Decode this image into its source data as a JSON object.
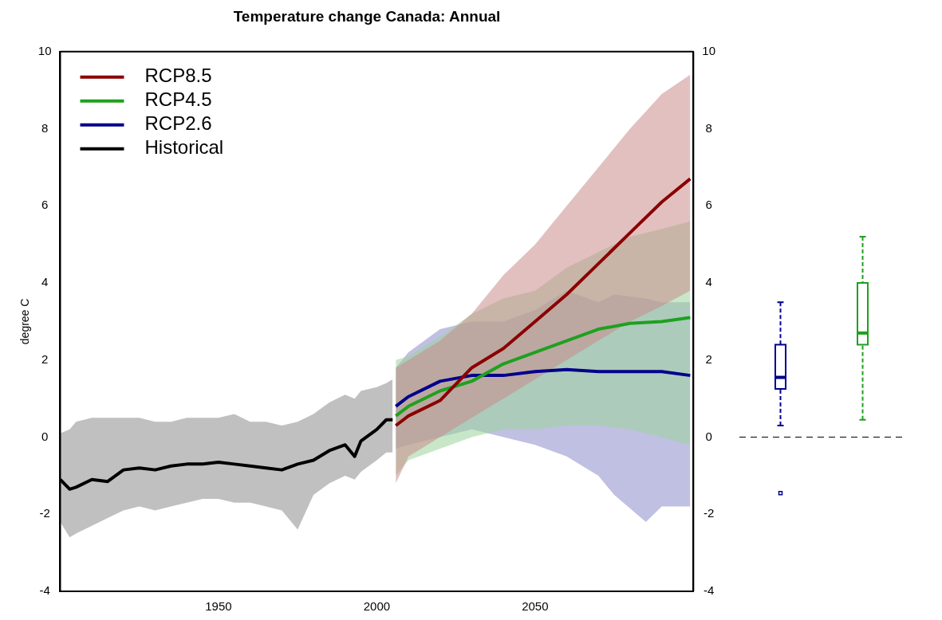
{
  "chart_data": [
    {
      "type": "line",
      "title": "Temperature change Canada: Annual",
      "ylabel": "degree C",
      "xlim": [
        1900,
        2100
      ],
      "xticks": [
        1950,
        2000,
        2050
      ],
      "ylim": [
        -4,
        10
      ],
      "yticks": [
        -4,
        -2,
        0,
        2,
        4,
        6,
        8,
        10
      ],
      "y2lim": [
        -4,
        10
      ],
      "y2ticks": [
        -4,
        -2,
        0,
        2,
        4,
        6,
        8,
        10
      ],
      "grid": false,
      "legend": "top left",
      "series": [
        {
          "name": "RCP8.5",
          "color": "#8b0000",
          "x": [
            2006,
            2010,
            2020,
            2030,
            2040,
            2050,
            2060,
            2070,
            2080,
            2090,
            2099
          ],
          "values": [
            0.3,
            0.55,
            0.95,
            1.8,
            2.3,
            3.0,
            3.7,
            4.5,
            5.3,
            6.1,
            6.7
          ],
          "lower": [
            -1.2,
            -0.5,
            0.0,
            0.5,
            1.0,
            1.5,
            2.0,
            2.5,
            3.0,
            3.4,
            3.8
          ],
          "upper": [
            1.8,
            2.0,
            2.5,
            3.2,
            4.2,
            5.0,
            6.0,
            7.0,
            8.0,
            8.9,
            9.4
          ]
        },
        {
          "name": "RCP4.5",
          "color": "#1fa01f",
          "x": [
            2006,
            2010,
            2020,
            2030,
            2040,
            2050,
            2060,
            2070,
            2080,
            2090,
            2099
          ],
          "values": [
            0.55,
            0.8,
            1.2,
            1.45,
            1.9,
            2.2,
            2.5,
            2.8,
            2.95,
            3.0,
            3.1
          ],
          "lower": [
            -1.0,
            -0.6,
            -0.3,
            0.0,
            0.2,
            0.2,
            0.3,
            0.3,
            0.2,
            0.0,
            -0.2
          ],
          "upper": [
            2.0,
            2.1,
            2.6,
            3.2,
            3.6,
            3.8,
            4.4,
            4.8,
            5.2,
            5.4,
            5.6
          ]
        },
        {
          "name": "RCP2.6",
          "color": "#00008b",
          "x": [
            2006,
            2010,
            2020,
            2030,
            2040,
            2050,
            2060,
            2070,
            2075,
            2085,
            2090,
            2099
          ],
          "values": [
            0.8,
            1.05,
            1.45,
            1.6,
            1.6,
            1.7,
            1.75,
            1.7,
            1.7,
            1.7,
            1.7,
            1.6
          ],
          "lower": [
            -0.3,
            -0.2,
            0.0,
            0.2,
            0.0,
            -0.2,
            -0.5,
            -1.0,
            -1.5,
            -2.2,
            -1.8,
            -1.8
          ],
          "upper": [
            1.8,
            2.2,
            2.8,
            3.0,
            3.0,
            3.3,
            3.8,
            3.5,
            3.7,
            3.6,
            3.5,
            3.5
          ]
        },
        {
          "name": "Historical",
          "color": "#000000",
          "x": [
            1900,
            1903,
            1905,
            1910,
            1915,
            1920,
            1925,
            1930,
            1935,
            1940,
            1945,
            1950,
            1955,
            1960,
            1965,
            1970,
            1975,
            1980,
            1985,
            1990,
            1993,
            1995,
            2000,
            2003,
            2005
          ],
          "values": [
            -1.1,
            -1.35,
            -1.3,
            -1.1,
            -1.15,
            -0.85,
            -0.8,
            -0.85,
            -0.75,
            -0.7,
            -0.7,
            -0.65,
            -0.7,
            -0.75,
            -0.8,
            -0.85,
            -0.7,
            -0.6,
            -0.35,
            -0.2,
            -0.5,
            -0.1,
            0.2,
            0.45,
            0.45
          ],
          "lower": [
            -2.2,
            -2.6,
            -2.5,
            -2.3,
            -2.1,
            -1.9,
            -1.8,
            -1.9,
            -1.8,
            -1.7,
            -1.6,
            -1.6,
            -1.7,
            -1.7,
            -1.8,
            -1.9,
            -2.4,
            -1.5,
            -1.2,
            -1.0,
            -1.1,
            -0.9,
            -0.6,
            -0.4,
            -0.4
          ],
          "upper": [
            0.1,
            0.2,
            0.4,
            0.5,
            0.5,
            0.5,
            0.5,
            0.4,
            0.4,
            0.5,
            0.5,
            0.5,
            0.6,
            0.4,
            0.4,
            0.3,
            0.4,
            0.6,
            0.9,
            1.1,
            1.0,
            1.2,
            1.3,
            1.4,
            1.5
          ]
        }
      ]
    },
    {
      "type": "box",
      "categories": [
        null,
        null
      ],
      "ylim": [
        -4,
        10
      ],
      "tick_labels": false,
      "colors": [
        "#00008b",
        "#1fa01f"
      ],
      "boxes": [
        {
          "low": 0.3,
          "q1": 1.25,
          "median": 1.55,
          "q3": 2.4,
          "high": 3.5,
          "outliers": [
            -1.45
          ]
        },
        {
          "low": 0.45,
          "q1": 2.4,
          "median": 2.7,
          "q3": 4.0,
          "high": 5.2
        }
      ],
      "ref_lines": [
        {
          "axis": "y",
          "value": 0,
          "color": "#000000",
          "line_style": "dashed"
        }
      ]
    }
  ]
}
